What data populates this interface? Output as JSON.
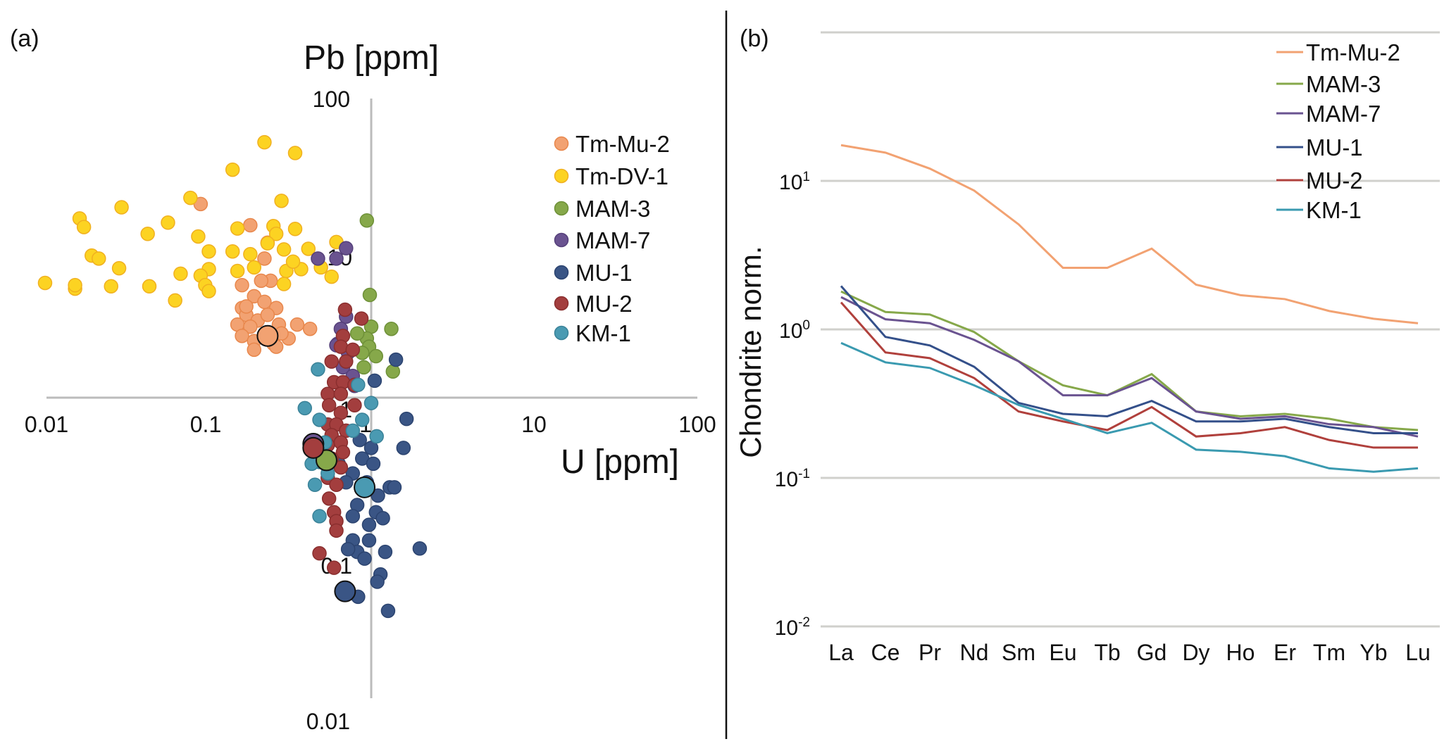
{
  "chart_data": [
    {
      "type": "scatter",
      "panel_label": "(a)",
      "xlabel": "U [ppm]",
      "ylabel": "Pb [ppm]",
      "xscale": "log",
      "yscale": "log",
      "xlim": [
        0.01,
        100
      ],
      "ylim": [
        0.01,
        100
      ],
      "x_ticks": [
        "0.01",
        "0.1",
        "1",
        "10",
        "100"
      ],
      "y_ticks": [
        "100",
        "10",
        "1",
        "0.1",
        "0.01"
      ],
      "grid": false,
      "legend_position": "right",
      "series": [
        {
          "name": "Tm-Mu-2",
          "color": "#f2a272",
          "stroke": "#e8874c",
          "points": [
            [
              0.089,
              20
            ],
            [
              0.18,
              14.4
            ],
            [
              0.23,
              11
            ],
            [
              0.22,
              8.6
            ],
            [
              0.24,
              6.1
            ],
            [
              0.21,
              6.1
            ],
            [
              0.16,
              5.7
            ],
            [
              0.19,
              4.8
            ],
            [
              0.22,
              4.4
            ],
            [
              0.26,
              4.0
            ],
            [
              0.16,
              4.0
            ],
            [
              0.17,
              3.6
            ],
            [
              0.2,
              3.3
            ],
            [
              0.15,
              3.1
            ],
            [
              0.18,
              3.0
            ],
            [
              0.27,
              3.1
            ],
            [
              0.35,
              3.1
            ],
            [
              0.42,
              2.9
            ],
            [
              0.16,
              2.6
            ],
            [
              0.19,
              2.4
            ],
            [
              0.25,
              2.3
            ],
            [
              0.31,
              2.5
            ],
            [
              0.19,
              2.1
            ],
            [
              0.26,
              2.2
            ],
            [
              0.17,
              4.1
            ],
            [
              0.23,
              3.6
            ],
            [
              0.28,
              2.7
            ]
          ],
          "mean": [
            0.23,
            2.6
          ]
        },
        {
          "name": "Tm-DV-1",
          "color": "#fcd322",
          "stroke": "#f0b020",
          "points": [
            [
              0.22,
              52
            ],
            [
              0.34,
              44
            ],
            [
              0.14,
              34
            ],
            [
              0.077,
              22
            ],
            [
              0.029,
              19
            ],
            [
              0.28,
              21
            ],
            [
              0.016,
              16
            ],
            [
              0.017,
              14
            ],
            [
              0.056,
              15
            ],
            [
              0.042,
              12.6
            ],
            [
              0.086,
              12.1
            ],
            [
              0.15,
              13.7
            ],
            [
              0.25,
              14.2
            ],
            [
              0.34,
              13.6
            ],
            [
              0.26,
              12.6
            ],
            [
              0.1,
              9.6
            ],
            [
              0.14,
              9.6
            ],
            [
              0.18,
              9.2
            ],
            [
              0.29,
              9.9
            ],
            [
              0.41,
              10
            ],
            [
              0.019,
              9.0
            ],
            [
              0.021,
              8.6
            ],
            [
              0.028,
              7.4
            ],
            [
              0.1,
              7.3
            ],
            [
              0.067,
              6.8
            ],
            [
              0.089,
              6.6
            ],
            [
              0.0098,
              5.9
            ],
            [
              0.015,
              5.4
            ],
            [
              0.015,
              5.7
            ],
            [
              0.025,
              5.6
            ],
            [
              0.043,
              5.6
            ],
            [
              0.095,
              5.7
            ],
            [
              0.1,
              5.2
            ],
            [
              0.062,
              4.5
            ],
            [
              0.15,
              7.1
            ],
            [
              0.19,
              7.5
            ],
            [
              0.3,
              7.1
            ],
            [
              0.37,
              7.3
            ],
            [
              0.49,
              7.5
            ],
            [
              0.57,
              6.5
            ],
            [
              0.29,
              5.8
            ],
            [
              0.61,
              11.1
            ],
            [
              0.23,
              10.9
            ],
            [
              0.33,
              8.2
            ]
          ]
        },
        {
          "name": "MAM-3",
          "color": "#86a84a",
          "stroke": "#6e9038",
          "points": [
            [
              0.94,
              15.5
            ],
            [
              0.98,
              4.9
            ],
            [
              1.33,
              2.9
            ],
            [
              1.0,
              3.0
            ],
            [
              0.94,
              2.5
            ],
            [
              0.97,
              2.2
            ],
            [
              1.07,
              1.9
            ],
            [
              0.88,
              2.0
            ],
            [
              0.9,
              1.6
            ],
            [
              1.36,
              1.5
            ],
            [
              0.82,
              2.7
            ]
          ],
          "mean": [
            0.53,
            0.38
          ]
        },
        {
          "name": "MAM-7",
          "color": "#6a5390",
          "stroke": "#55407a",
          "points": [
            [
              0.47,
              8.6
            ],
            [
              0.61,
              8.6
            ],
            [
              0.7,
              10.1
            ],
            [
              0.7,
              3.5
            ],
            [
              0.65,
              2.9
            ],
            [
              0.62,
              2.3
            ],
            [
              0.72,
              2.0
            ],
            [
              0.67,
              1.6
            ],
            [
              0.77,
              1.4
            ],
            [
              0.79,
              1.2
            ],
            [
              0.61,
              2.25
            ]
          ],
          "mean": [
            0.44,
            0.49
          ]
        },
        {
          "name": "MU-1",
          "color": "#3a5585",
          "stroke": "#2c4470",
          "points": [
            [
              1.42,
              1.8
            ],
            [
              1.05,
              1.3
            ],
            [
              1.65,
              0.72
            ],
            [
              1.58,
              0.46
            ],
            [
              1.0,
              0.46
            ],
            [
              0.88,
              0.39
            ],
            [
              1.03,
              0.36
            ],
            [
              0.77,
              0.31
            ],
            [
              1.3,
              0.25
            ],
            [
              1.39,
              0.25
            ],
            [
              1.1,
              0.22
            ],
            [
              0.82,
              0.19
            ],
            [
              1.07,
              0.17
            ],
            [
              0.77,
              0.16
            ],
            [
              0.97,
              0.14
            ],
            [
              1.18,
              0.155
            ],
            [
              0.77,
              0.11
            ],
            [
              0.97,
              0.11
            ],
            [
              1.99,
              0.097
            ],
            [
              1.22,
              0.092
            ],
            [
              0.82,
              0.092
            ],
            [
              0.72,
              0.096
            ],
            [
              0.91,
              0.083
            ],
            [
              1.14,
              0.065
            ],
            [
              1.09,
              0.058
            ],
            [
              0.83,
              0.046
            ],
            [
              1.27,
              0.037
            ],
            [
              0.63,
              0.36
            ],
            [
              0.7,
              0.27
            ],
            [
              0.94,
              0.27
            ],
            [
              0.85,
              0.52
            ]
          ],
          "mean": [
            0.69,
            0.05
          ]
        },
        {
          "name": "MU-2",
          "color": "#a33e3e",
          "stroke": "#8a2e2e",
          "points": [
            [
              0.69,
              3.9
            ],
            [
              0.87,
              3.4
            ],
            [
              0.67,
              2.6
            ],
            [
              0.65,
              2.2
            ],
            [
              0.77,
              2.1
            ],
            [
              0.57,
              1.75
            ],
            [
              0.7,
              1.75
            ],
            [
              0.59,
              1.27
            ],
            [
              0.67,
              1.27
            ],
            [
              0.79,
              1.22
            ],
            [
              0.54,
              1.06
            ],
            [
              0.65,
              1.06
            ],
            [
              0.79,
              0.89
            ],
            [
              0.55,
              0.89
            ],
            [
              0.65,
              0.79
            ],
            [
              0.54,
              0.66
            ],
            [
              0.61,
              0.66
            ],
            [
              0.7,
              0.6
            ],
            [
              0.57,
              0.56
            ],
            [
              0.65,
              0.5
            ],
            [
              0.54,
              0.48
            ],
            [
              0.67,
              0.43
            ],
            [
              0.57,
              0.39
            ],
            [
              0.65,
              0.34
            ],
            [
              0.54,
              0.29
            ],
            [
              0.61,
              0.26
            ],
            [
              0.55,
              0.21
            ],
            [
              0.59,
              0.17
            ],
            [
              0.61,
              0.148
            ],
            [
              0.61,
              0.128
            ],
            [
              0.48,
              0.09
            ],
            [
              0.59,
              0.072
            ]
          ],
          "mean": [
            0.44,
            0.46
          ]
        },
        {
          "name": "KM-1",
          "color": "#4a9ab2",
          "stroke": "#3a8298",
          "points": [
            [
              0.47,
              1.55
            ],
            [
              0.39,
              0.85
            ],
            [
              0.48,
              0.71
            ],
            [
              0.83,
              1.22
            ],
            [
              1.0,
              0.92
            ],
            [
              1.08,
              0.55
            ],
            [
              0.48,
              0.16
            ],
            [
              0.45,
              0.26
            ],
            [
              0.52,
              0.5
            ],
            [
              0.48,
              0.37
            ],
            [
              0.54,
              0.31
            ],
            [
              0.43,
              0.36
            ],
            [
              0.77,
              0.6
            ],
            [
              0.88,
              0.71
            ]
          ],
          "mean": [
            0.91,
            0.25
          ]
        }
      ]
    },
    {
      "type": "line",
      "panel_label": "(b)",
      "xlabel": "",
      "ylabel": "Chondrite norm.",
      "yscale": "log",
      "ylim": [
        0.01,
        100
      ],
      "y_ticks": [
        {
          "base": "10",
          "exp": "1",
          "value": 10
        },
        {
          "base": "10",
          "exp": "0",
          "value": 1
        },
        {
          "base": "10",
          "exp": "-1",
          "value": 0.1
        },
        {
          "base": "10",
          "exp": "-2",
          "value": 0.01
        }
      ],
      "grid": true,
      "legend_position": "top-right",
      "categories": [
        "La",
        "Ce",
        "Pr",
        "Nd",
        "Sm",
        "Eu",
        "Tb",
        "Gd",
        "Dy",
        "Ho",
        "Er",
        "Tm",
        "Yb",
        "Lu"
      ],
      "series": [
        {
          "name": "Tm-Mu-2",
          "color": "#f2a272",
          "values": [
            17.4,
            15.5,
            12.1,
            8.6,
            5.1,
            2.6,
            2.6,
            3.5,
            2.0,
            1.7,
            1.6,
            1.33,
            1.18,
            1.1
          ]
        },
        {
          "name": "MAM-3",
          "color": "#86a84a",
          "values": [
            1.8,
            1.31,
            1.26,
            0.96,
            0.61,
            0.42,
            0.36,
            0.5,
            0.28,
            0.26,
            0.27,
            0.25,
            0.22,
            0.21
          ]
        },
        {
          "name": "MAM-7",
          "color": "#6a5390",
          "values": [
            1.65,
            1.17,
            1.1,
            0.85,
            0.61,
            0.36,
            0.36,
            0.47,
            0.28,
            0.25,
            0.26,
            0.23,
            0.22,
            0.19
          ]
        },
        {
          "name": "MU-1",
          "color": "#34508a",
          "values": [
            1.96,
            0.89,
            0.78,
            0.56,
            0.32,
            0.27,
            0.26,
            0.33,
            0.24,
            0.24,
            0.25,
            0.22,
            0.2,
            0.2
          ]
        },
        {
          "name": "MU-2",
          "color": "#b0403c",
          "values": [
            1.52,
            0.7,
            0.64,
            0.47,
            0.28,
            0.24,
            0.21,
            0.3,
            0.19,
            0.2,
            0.22,
            0.18,
            0.16,
            0.16
          ]
        },
        {
          "name": "KM-1",
          "color": "#3a9ab0",
          "values": [
            0.81,
            0.6,
            0.55,
            0.42,
            0.31,
            0.25,
            0.2,
            0.235,
            0.155,
            0.15,
            0.14,
            0.116,
            0.11,
            0.116
          ]
        }
      ]
    }
  ]
}
